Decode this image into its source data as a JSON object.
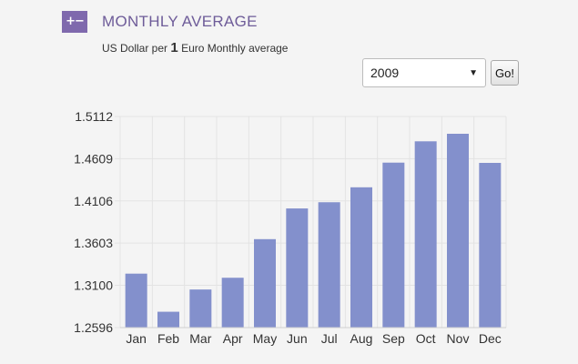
{
  "header": {
    "icon": "plus-minus-icon",
    "title": "MONTHLY AVERAGE",
    "subtitle_prefix": "US Dollar per",
    "subtitle_number": "1",
    "subtitle_suffix": "Euro Monthly average"
  },
  "controls": {
    "year_value": "2009",
    "go_label": "Go!"
  },
  "colors": {
    "bar": "#8390cc",
    "grid": "#e3e3e3",
    "icon_bg": "#7f69ad",
    "title": "#6e5c99"
  },
  "chart_data": {
    "type": "bar",
    "title": "",
    "xlabel": "",
    "ylabel": "",
    "categories": [
      "Jan",
      "Feb",
      "Mar",
      "Apr",
      "May",
      "Jun",
      "Jul",
      "Aug",
      "Sep",
      "Oct",
      "Nov",
      "Dec"
    ],
    "values": [
      1.3239,
      1.2785,
      1.305,
      1.319,
      1.365,
      1.4016,
      1.409,
      1.4268,
      1.4562,
      1.4816,
      1.4906,
      1.4559
    ],
    "yticks": [
      "1.2596",
      "1.3100",
      "1.3603",
      "1.4106",
      "1.4609",
      "1.5112"
    ],
    "ylim": [
      1.2596,
      1.5112
    ],
    "grid": true,
    "legend": "none"
  }
}
